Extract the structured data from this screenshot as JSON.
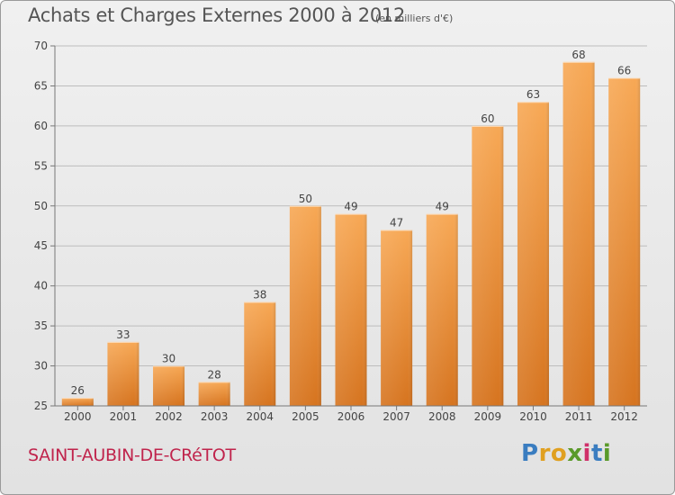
{
  "header": {
    "title": "Achats et Charges Externes 2000 à 2012",
    "unit": "(en milliers d'€)"
  },
  "footer": {
    "place": "SAINT-AUBIN-DE-CRéTOT",
    "brand_letters": [
      "P",
      "r",
      "o",
      "x",
      "i",
      "t",
      "i"
    ],
    "brand_colors": [
      "#3a7dc0",
      "#e0a020",
      "#e0a020",
      "#5a9a2a",
      "#d0306a",
      "#3a7dc0",
      "#5a9a2a"
    ]
  },
  "colors": {
    "bar_light": "#f7a855",
    "bar_dark": "#d6741f",
    "grid": "#bdbdbd"
  },
  "chart_data": {
    "type": "bar",
    "categories": [
      "2000",
      "2001",
      "2002",
      "2003",
      "2004",
      "2005",
      "2006",
      "2007",
      "2008",
      "2009",
      "2010",
      "2011",
      "2012"
    ],
    "values": [
      26,
      33,
      30,
      28,
      38,
      50,
      49,
      47,
      49,
      60,
      63,
      68,
      66
    ],
    "ylim": [
      25,
      70
    ],
    "yticks": [
      25,
      30,
      35,
      40,
      45,
      50,
      55,
      60,
      65,
      70
    ],
    "grid": true,
    "legend": "none"
  }
}
